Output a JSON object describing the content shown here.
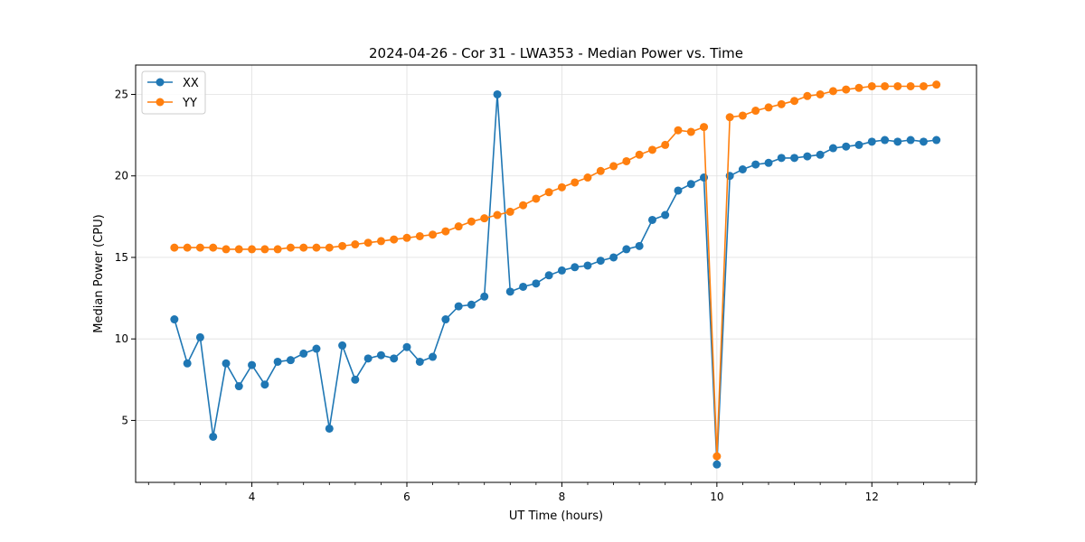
{
  "chart_data": {
    "type": "line",
    "title": "2024-04-26 - Cor 31 - LWA353 - Median Power vs. Time",
    "xlabel": "UT Time (hours)",
    "ylabel": "Median Power (CPU)",
    "xlim": [
      2.5,
      13.35
    ],
    "ylim": [
      1.2,
      26.8
    ],
    "xticks": [
      4,
      6,
      8,
      10,
      12
    ],
    "yticks": [
      5,
      10,
      15,
      20,
      25
    ],
    "grid": true,
    "legend_position": "top-left",
    "x": [
      3.0,
      3.167,
      3.333,
      3.5,
      3.667,
      3.833,
      4.0,
      4.167,
      4.333,
      4.5,
      4.667,
      4.833,
      5.0,
      5.167,
      5.333,
      5.5,
      5.667,
      5.833,
      6.0,
      6.167,
      6.333,
      6.5,
      6.667,
      6.833,
      7.0,
      7.167,
      7.333,
      7.5,
      7.667,
      7.833,
      8.0,
      8.167,
      8.333,
      8.5,
      8.667,
      8.833,
      9.0,
      9.167,
      9.333,
      9.5,
      9.667,
      9.833,
      10.0,
      10.167,
      10.333,
      10.5,
      10.667,
      10.833,
      11.0,
      11.167,
      11.333,
      11.5,
      11.667,
      11.833,
      12.0,
      12.167,
      12.333,
      12.5,
      12.667,
      12.833
    ],
    "series": [
      {
        "name": "XX",
        "color": "#1f77b4",
        "values": [
          11.2,
          8.5,
          10.1,
          4.0,
          8.5,
          7.1,
          8.4,
          7.2,
          8.6,
          8.7,
          9.1,
          9.4,
          4.5,
          9.6,
          7.5,
          8.8,
          9.0,
          8.8,
          9.5,
          8.6,
          8.9,
          11.2,
          12.0,
          12.1,
          12.6,
          25.0,
          12.9,
          13.2,
          13.4,
          13.9,
          14.2,
          14.4,
          14.5,
          14.8,
          15.0,
          15.5,
          15.7,
          17.3,
          17.6,
          19.1,
          19.5,
          19.9,
          2.3,
          20.0,
          20.4,
          20.7,
          20.8,
          21.1,
          21.1,
          21.2,
          21.3,
          21.7,
          21.8,
          21.9,
          22.1,
          22.2,
          22.1,
          22.2,
          22.1,
          22.2
        ]
      },
      {
        "name": "YY",
        "color": "#ff7f0e",
        "values": [
          15.6,
          15.6,
          15.6,
          15.6,
          15.5,
          15.5,
          15.5,
          15.5,
          15.5,
          15.6,
          15.6,
          15.6,
          15.6,
          15.7,
          15.8,
          15.9,
          16.0,
          16.1,
          16.2,
          16.3,
          16.4,
          16.6,
          16.9,
          17.2,
          17.4,
          17.6,
          17.8,
          18.2,
          18.6,
          19.0,
          19.3,
          19.6,
          19.9,
          20.3,
          20.6,
          20.9,
          21.3,
          21.6,
          21.9,
          22.8,
          22.7,
          23.0,
          2.8,
          23.6,
          23.7,
          24.0,
          24.2,
          24.4,
          24.6,
          24.9,
          25.0,
          25.2,
          25.3,
          25.4,
          25.5,
          25.5,
          25.5,
          25.5,
          25.5,
          25.6
        ]
      }
    ]
  }
}
